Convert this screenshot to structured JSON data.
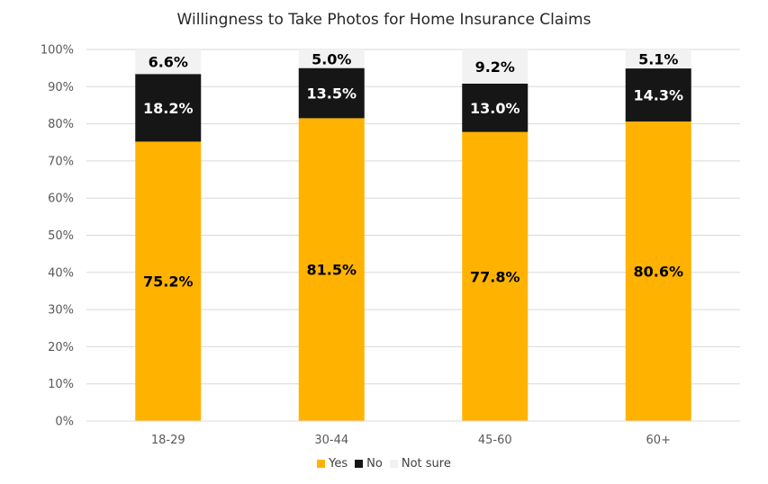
{
  "chart_data": {
    "type": "bar",
    "stacked": true,
    "title": "Willingness to Take Photos for Home Insurance Claims",
    "categories": [
      "18-29",
      "30-44",
      "45-60",
      "60+"
    ],
    "series": [
      {
        "name": "Yes",
        "values": [
          75.2,
          81.5,
          77.8,
          80.6
        ],
        "labels": [
          "75.2%",
          "81.5%",
          "77.8%",
          "80.6%"
        ],
        "color": "#FFB300",
        "label_color": "#000000"
      },
      {
        "name": "No",
        "values": [
          18.2,
          13.5,
          13.0,
          14.3
        ],
        "labels": [
          "18.2%",
          "13.5%",
          "13.0%",
          "14.3%"
        ],
        "color": "#161616",
        "label_color": "#ffffff"
      },
      {
        "name": "Not sure",
        "values": [
          6.6,
          5.0,
          9.2,
          5.1
        ],
        "labels": [
          "6.6%",
          "5.0%",
          "9.2%",
          "5.1%"
        ],
        "color": "#F2F2F2",
        "label_color": "#000000"
      }
    ],
    "ylim": [
      0,
      100
    ],
    "yticks": [
      "0%",
      "10%",
      "20%",
      "30%",
      "40%",
      "50%",
      "60%",
      "70%",
      "80%",
      "90%",
      "100%"
    ],
    "grid": true,
    "legend": "bottom",
    "gridline_color": "#D9D9D9",
    "axis_text_color": "#595959"
  }
}
